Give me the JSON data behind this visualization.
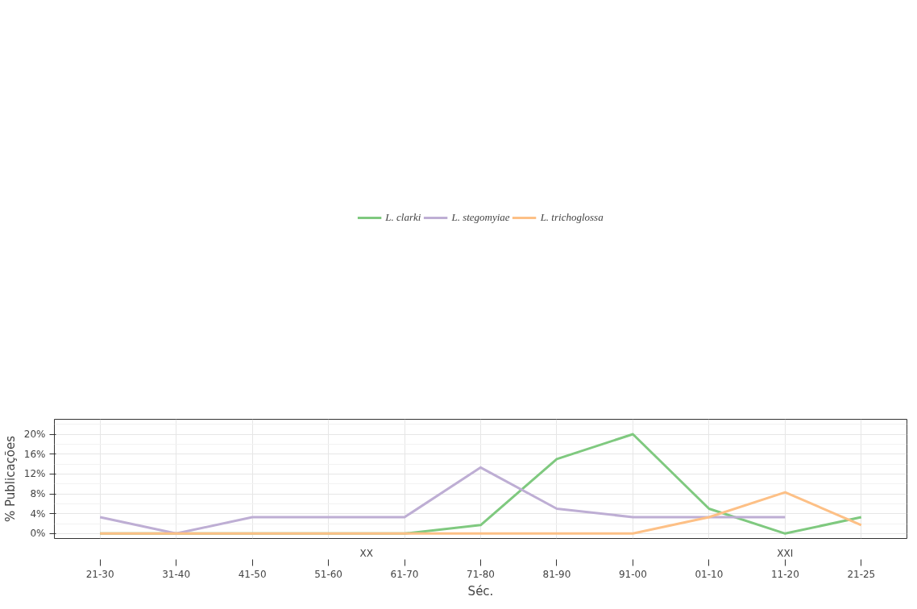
{
  "chart_data": {
    "type": "line",
    "xlabel": "Séc.",
    "ylabel": "% Publicações",
    "categories": [
      "21-30",
      "31-40",
      "41-50",
      "51-60",
      "61-70",
      "71-80",
      "81-90",
      "91-00",
      "01-10",
      "11-20",
      "21-25"
    ],
    "series": [
      {
        "name": "L. clarki",
        "color": "#7fc97f",
        "values": [
          0,
          0,
          0,
          0,
          0,
          1.7,
          15,
          20,
          5,
          0,
          3.3
        ]
      },
      {
        "name": "L. stegomyiae",
        "color": "#beaed4",
        "values": [
          3.3,
          0,
          3.3,
          3.3,
          3.3,
          13.3,
          5,
          3.3,
          3.3,
          3.3,
          null
        ]
      },
      {
        "name": "L. trichoglossa",
        "color": "#fdc086",
        "values": [
          0,
          0,
          0,
          0,
          0,
          0,
          0,
          0,
          3.3,
          8.3,
          1.7
        ]
      }
    ],
    "ylim": [
      -1,
      23
    ],
    "yticks": [
      {
        "value": 0,
        "label": "0%"
      },
      {
        "value": 4,
        "label": "4%"
      },
      {
        "value": 8,
        "label": "8%"
      },
      {
        "value": 12,
        "label": "12%"
      },
      {
        "value": 16,
        "label": "16%"
      },
      {
        "value": 20,
        "label": "20%"
      }
    ],
    "annotations": [
      "XX",
      "XXI"
    ],
    "grid": true,
    "legend": "top",
    "marker": "none",
    "line_style": "solid"
  }
}
